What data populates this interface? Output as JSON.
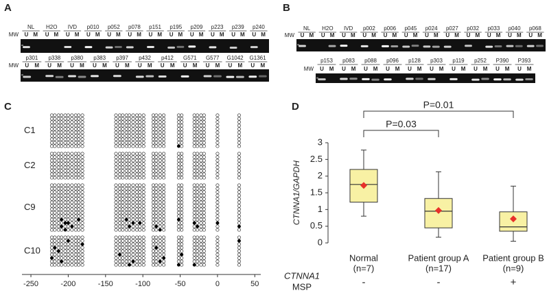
{
  "panel_labels": [
    "A",
    "B",
    "C",
    "D"
  ],
  "gels": [
    {
      "marker": "MW",
      "lane_labels": [
        "U",
        "M"
      ],
      "rows": [
        [
          "NL",
          "H2O",
          "IVD",
          "p010",
          "p052",
          "p078",
          "p151",
          "p195",
          "p209",
          "p223",
          "p239",
          "p240"
        ],
        [
          "p301",
          "p338",
          "p380",
          "p383",
          "p397",
          "p432",
          "p412",
          "G571",
          "G577",
          "G1042",
          "G1361"
        ]
      ]
    },
    {
      "marker": "MW",
      "lane_labels": [
        "U",
        "M"
      ],
      "rows": [
        [
          "NL",
          "H2O",
          "IVD",
          "p002",
          "p006",
          "p045",
          "p024",
          "p027",
          "p032",
          "p033",
          "p040",
          "p068"
        ],
        [
          "p153",
          "p083",
          "p088",
          "p096",
          "p128",
          "p303",
          "p119",
          "p252",
          "P390",
          "P393"
        ]
      ]
    }
  ],
  "chart_data": [
    {
      "type": "lollipop",
      "xlim": [
        -262,
        58
      ],
      "xticks": [
        -250,
        -200,
        -150,
        -100,
        -50,
        0,
        50
      ],
      "cpg_positions": [
        -222,
        -218,
        -213,
        -209,
        -204,
        -200,
        -195,
        -190,
        -186,
        -181,
        -136,
        -131,
        -127,
        -122,
        -118,
        -113,
        -108,
        -104,
        -99,
        -86,
        -82,
        -77,
        -72,
        -52,
        -48,
        -31,
        -27,
        -22,
        -18,
        0,
        29
      ],
      "groups": [
        {
          "name": "C1",
          "clones": 10,
          "methylated": [
            [
              9,
              23
            ]
          ]
        },
        {
          "name": "C2",
          "clones": 8,
          "methylated": []
        },
        {
          "name": "C9",
          "clones": 14,
          "methylated": [
            [
              10,
              3
            ],
            [
              11,
              4
            ],
            [
              11,
              5
            ],
            [
              12,
              3
            ],
            [
              12,
              6
            ],
            [
              13,
              4
            ],
            [
              10,
              8
            ],
            [
              10,
              13
            ],
            [
              11,
              15
            ],
            [
              12,
              14
            ],
            [
              11,
              17
            ],
            [
              12,
              20
            ],
            [
              13,
              21
            ],
            [
              10,
              23
            ],
            [
              11,
              25
            ],
            [
              12,
              26
            ],
            [
              11,
              29
            ],
            [
              12,
              30
            ]
          ]
        },
        {
          "name": "C10",
          "clones": 9,
          "methylated": [
            [
              1,
              5
            ],
            [
              3,
              1
            ],
            [
              4,
              2
            ],
            [
              6,
              0
            ],
            [
              7,
              3
            ],
            [
              2,
              9
            ],
            [
              5,
              11
            ],
            [
              7,
              15
            ],
            [
              8,
              14
            ],
            [
              3,
              20
            ],
            [
              6,
              22
            ],
            [
              7,
              21
            ],
            [
              8,
              23
            ],
            [
              1,
              30
            ],
            [
              5,
              24
            ],
            [
              8,
              25
            ]
          ]
        }
      ]
    },
    {
      "type": "box",
      "ylabel": "CTNNA1/GAPDH",
      "categories": [
        "Normal",
        "Patient group A",
        "Patient group B"
      ],
      "sublabels": [
        "(n=7)",
        "(n=17)",
        "(n=9)"
      ],
      "whisker_low": [
        0.8,
        0.17,
        0.05
      ],
      "q1": [
        1.22,
        0.45,
        0.35
      ],
      "median": [
        1.75,
        0.95,
        0.48
      ],
      "q3": [
        2.2,
        1.33,
        0.93
      ],
      "whisker_high": [
        2.78,
        2.13,
        1.7
      ],
      "mean": [
        1.72,
        0.97,
        0.72
      ],
      "color": "#f8f1a4",
      "mean_color": "#e8302a",
      "ylim": [
        0,
        3
      ],
      "yticks": [
        0,
        0.5,
        1,
        1.5,
        2,
        2.5,
        3
      ],
      "comparisons": [
        {
          "from": 0,
          "to": 1,
          "label": "P=0.03"
        },
        {
          "from": 0,
          "to": 2,
          "label": "P=0.01"
        }
      ],
      "row_label": "CTNNA1",
      "row_sublabel": "MSP",
      "msp": [
        "-",
        "-",
        "+"
      ]
    }
  ]
}
